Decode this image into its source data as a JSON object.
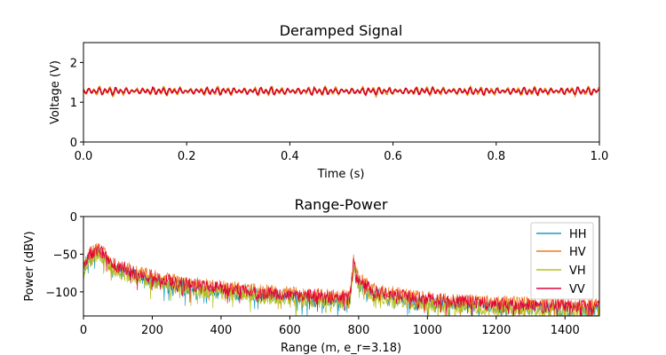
{
  "figure": {
    "background": "#ffffff"
  },
  "chart_data": [
    {
      "type": "line",
      "title": "Deramped Signal",
      "xlabel": "Time (s)",
      "ylabel": "Voltage (V)",
      "xlim": [
        0.0,
        1.0
      ],
      "ylim": [
        0,
        2.5
      ],
      "xticks": [
        0.0,
        0.2,
        0.4,
        0.6,
        0.8,
        1.0
      ],
      "xtick_labels": [
        "0.0",
        "0.2",
        "0.4",
        "0.6",
        "0.8",
        "1.0"
      ],
      "yticks": [
        0,
        1,
        2
      ],
      "ytick_labels": [
        "0",
        "1",
        "2"
      ],
      "grid": false,
      "series": [
        {
          "color": "#e08a00",
          "mean": 1.28,
          "amplitude": 0.1
        },
        {
          "color": "#d6002c",
          "mean": 1.28,
          "amplitude": 0.08
        }
      ]
    },
    {
      "type": "line",
      "title": "Range-Power",
      "xlabel": "Range (m, e_r=3.18)",
      "ylabel": "Power (dBV)",
      "xlim": [
        0,
        1500
      ],
      "ylim": [
        -132,
        0
      ],
      "xticks": [
        0,
        200,
        400,
        600,
        800,
        1000,
        1200,
        1400
      ],
      "xtick_labels": [
        "0",
        "200",
        "400",
        "600",
        "800",
        "1000",
        "1200",
        "1400"
      ],
      "yticks": [
        0,
        -50,
        -100
      ],
      "ytick_labels": [
        "0",
        "−50",
        "−100"
      ],
      "grid": false,
      "legend": {
        "position": "top-right"
      },
      "series": [
        {
          "name": "HH",
          "color": "#1f9bbf",
          "offset": -4
        },
        {
          "name": "HV",
          "color": "#ef7b1a",
          "offset": 2
        },
        {
          "name": "VH",
          "color": "#b5c21a",
          "offset": -7
        },
        {
          "name": "VV",
          "color": "#e3003a",
          "offset": 0
        }
      ],
      "envelope": {
        "x": [
          0,
          15,
          40,
          55,
          80,
          150,
          300,
          500,
          700,
          775,
          785,
          800,
          850,
          1000,
          1200,
          1500
        ],
        "y": [
          -70,
          -50,
          -44,
          -48,
          -62,
          -75,
          -90,
          -100,
          -106,
          -108,
          -60,
          -85,
          -100,
          -110,
          -116,
          -120
        ]
      }
    }
  ]
}
